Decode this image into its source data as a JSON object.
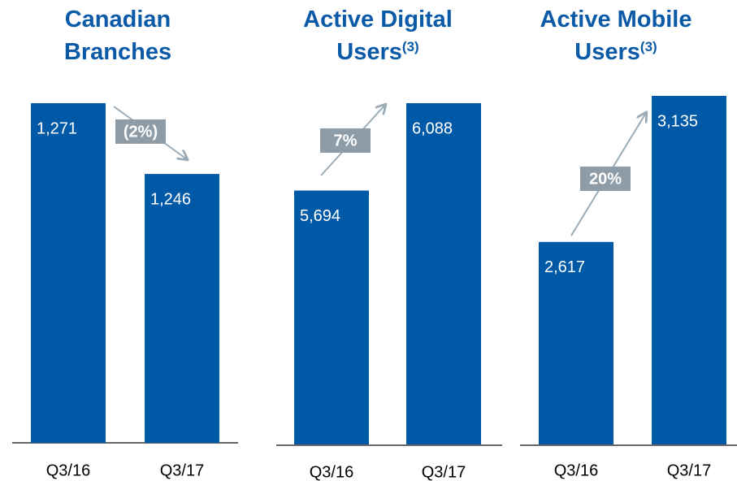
{
  "chart_data": [
    {
      "type": "bar",
      "title": "Canadian Branches",
      "categories": [
        "Q3/16",
        "Q3/17"
      ],
      "values": [
        1271,
        1246
      ],
      "value_labels": [
        "1,271",
        "1,246"
      ],
      "annotation": "(2%)",
      "color": "#0059a6",
      "ylim": [
        1151,
        1271
      ]
    },
    {
      "type": "bar",
      "title": "Active Digital Users",
      "title_note": "(3)",
      "categories": [
        "Q3/16",
        "Q3/17"
      ],
      "values": [
        5694,
        6088
      ],
      "value_labels": [
        "5,694",
        "6,088"
      ],
      "annotation": "7%",
      "color": "#0059a6",
      "ylim": [
        4549,
        6088
      ]
    },
    {
      "type": "bar",
      "title": "Active Mobile Users",
      "title_note": "(3)",
      "categories": [
        "Q3/16",
        "Q3/17"
      ],
      "values": [
        2617,
        3135
      ],
      "value_labels": [
        "2,617",
        "3,135"
      ],
      "annotation": "20%",
      "color": "#0059a6",
      "ylim": [
        1899,
        3135
      ]
    }
  ]
}
